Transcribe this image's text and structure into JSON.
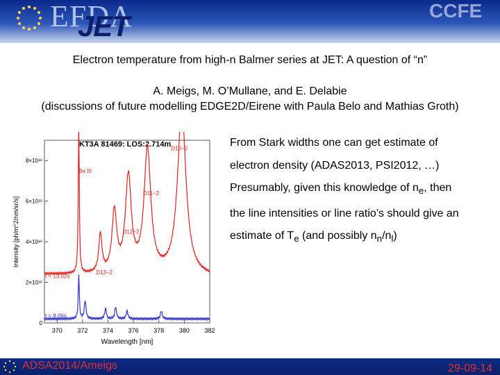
{
  "header": {
    "logo_left_text": "EFDA",
    "logo_jet_text": "JET",
    "logo_right_text": "CCFE",
    "emblem_icon": "eu-stars-icon"
  },
  "slide": {
    "title": "Electron temperature from high-n Balmer series at JET: A question of “n”",
    "authors_line1": "A. Meigs, M. O’Mullane, and E. Delabie",
    "authors_line2": "(discussions of future modelling EDGE2D/Eirene with Paula Belo and Mathias Groth)",
    "bullet1": "From Stark widths one can get estimate of",
    "bullet2": "electron density (ADAS2013, PSI2012, …)",
    "bullet3_pre": "Presumably, given this knowledge of n",
    "bullet3_sub": "e",
    "bullet3_post": ", then",
    "bullet4": "the line intensities or line ratio’s should give an",
    "bullet5_pre": "estimate of T",
    "bullet5_sub1": "e",
    "bullet5_mid": " (and possibly n",
    "bullet5_sub2": "n",
    "bullet5_slash": "/n",
    "bullet5_sub3": "l",
    "bullet5_post": ")"
  },
  "footer": {
    "left_text": "ADSA2014/Ameigs",
    "date": "29-09-14"
  },
  "chart_data": {
    "type": "line",
    "title": "KT3A 81469: LOS:2.714m",
    "xlabel": "Wavelength [nm]",
    "ylabel": "Intensity [ph/m^2/nm/sr/s]",
    "xlim": [
      369,
      382
    ],
    "ylim": [
      0,
      9e+18
    ],
    "x_ticks": [
      "370",
      "372",
      "374",
      "376",
      "378",
      "380",
      "382"
    ],
    "y_ticks": [
      "0",
      "2×10¹⁸",
      "4×10¹⁸",
      "6×10¹⁸",
      "8×10¹⁸"
    ],
    "annotations": [
      "Be III",
      "D10−2",
      "D11−2",
      "D12−2",
      "D13−2",
      "t = 13.02s",
      "t = 8.06s"
    ],
    "series": [
      {
        "name": "t = 13.02s",
        "color": "#e02020",
        "peaks": [
          [
            371.7,
            7.3e+18,
            0.05
          ],
          [
            373.4,
            1.9e+18,
            0.15
          ],
          [
            374.5,
            3e+18,
            0.22
          ],
          [
            375.6,
            4.7e+18,
            0.28
          ],
          [
            377.1,
            6.1e+18,
            0.32
          ],
          [
            379.8,
            8.2e+18,
            0.4
          ]
        ],
        "baseline": 2.4e+18
      },
      {
        "name": "t = 8.06s",
        "color": "#3030d0",
        "peaks": [
          [
            371.7,
            2.2e+18,
            0.05
          ],
          [
            372.2,
            9e+17,
            0.08
          ],
          [
            373.8,
            5e+17,
            0.08
          ],
          [
            374.6,
            6e+17,
            0.08
          ],
          [
            375.5,
            4e+17,
            0.08
          ],
          [
            378.2,
            4e+17,
            0.08
          ]
        ],
        "baseline": 2e+17
      }
    ]
  }
}
